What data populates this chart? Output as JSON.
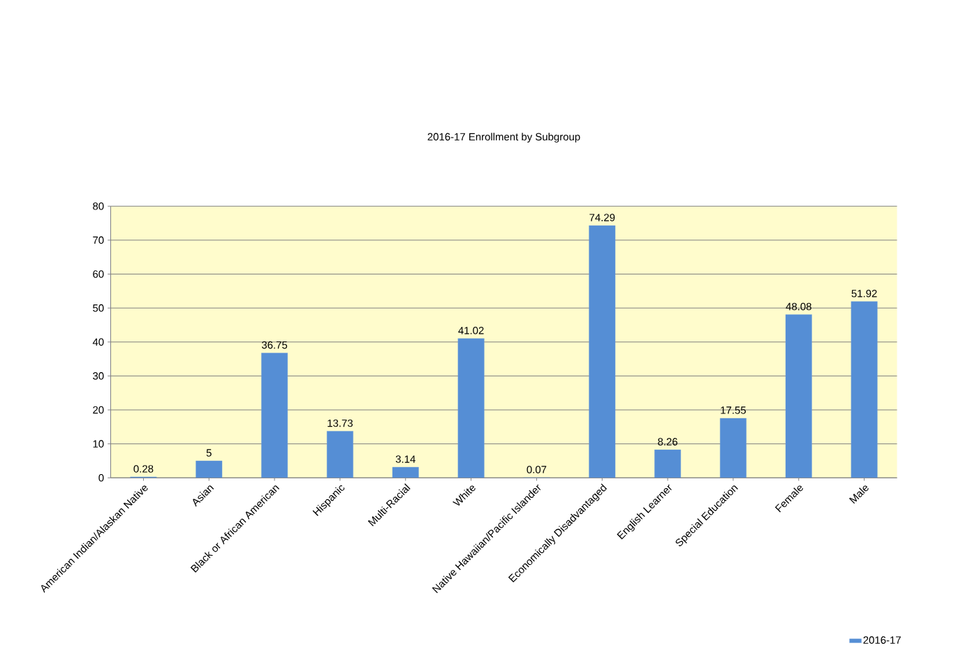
{
  "chart_data": {
    "type": "bar",
    "title": "2016-17 Enrollment by Subgroup",
    "categories": [
      "American Indian/Alaskan Native",
      "Asian",
      "Black or African American",
      "Hispanic",
      "Multi-Racial",
      "White",
      "Native Hawaiian/Pacific Islander",
      "Economically Disadvantaged",
      "English Learner",
      "Special Education",
      "Female",
      "Male"
    ],
    "series": [
      {
        "name": "2016-17",
        "color": "#558ed5",
        "values": [
          0.28,
          5,
          36.75,
          13.73,
          3.14,
          41.02,
          0.07,
          74.29,
          8.26,
          17.55,
          48.08,
          51.92
        ]
      }
    ],
    "ylim": [
      0,
      80
    ],
    "yticks": [
      0,
      10,
      20,
      30,
      40,
      50,
      60,
      70,
      80
    ],
    "grid": "y",
    "legend": "bottom right",
    "data_labels": true
  }
}
